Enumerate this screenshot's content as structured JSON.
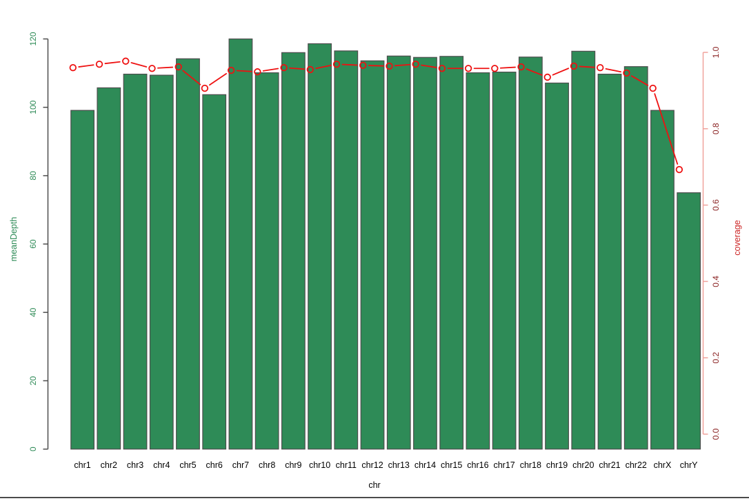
{
  "window": {
    "background": "#ffffff",
    "bottom_border_color": "#4a4a4a"
  },
  "chart_data": {
    "type": "bar",
    "subtype": "dual-axis bar + line combo",
    "title": "",
    "categories": [
      "chr1",
      "chr2",
      "chr3",
      "chr4",
      "chr5",
      "chr6",
      "chr7",
      "chr8",
      "chr9",
      "chr10",
      "chr11",
      "chr12",
      "chr13",
      "chr14",
      "chr15",
      "chr16",
      "chr17",
      "chr18",
      "chr19",
      "chr20",
      "chr21",
      "chr22",
      "chrX",
      "chrY"
    ],
    "series": [
      {
        "name": "meanDepth",
        "type": "bar",
        "yaxis": "left",
        "values": [
          99.1,
          105.7,
          109.7,
          109.4,
          114.2,
          103.7,
          120.0,
          110.1,
          116.0,
          118.6,
          116.5,
          113.6,
          115.0,
          114.6,
          114.9,
          110.1,
          110.3,
          114.7,
          107.1,
          116.4,
          109.7,
          111.9,
          99.1,
          75.0
        ]
      },
      {
        "name": "coverage",
        "type": "line",
        "marker": "open-circle",
        "yaxis": "right",
        "values": [
          0.96,
          0.969,
          0.977,
          0.958,
          0.962,
          0.906,
          0.953,
          0.949,
          0.96,
          0.955,
          0.969,
          0.966,
          0.964,
          0.969,
          0.958,
          0.958,
          0.958,
          0.962,
          0.935,
          0.964,
          0.96,
          0.946,
          0.906,
          0.693
        ]
      }
    ],
    "xlabel": "chr",
    "ylabel_left": "meanDepth",
    "ylabel_right": "coverage",
    "ylim_left": [
      0,
      120
    ],
    "ylim_right": [
      0.0,
      1.0
    ],
    "yticks_left": [
      "0",
      "20",
      "40",
      "60",
      "80",
      "100",
      "120"
    ],
    "yticks_right": [
      "0.0",
      "0.2",
      "0.4",
      "0.6",
      "0.8",
      "1.0"
    ],
    "grid": false,
    "legend": "none",
    "colors": {
      "bar_fill": "#2e8b57",
      "bar_border": "#4d4d4d",
      "line": "#ee1111",
      "left_axis_line": "#4d4d4d",
      "left_tick_text": "#2e8b57",
      "right_axis_line": "#f0a29c",
      "right_tick_text": "#8b2323",
      "x_tick_text": "#000000"
    }
  }
}
